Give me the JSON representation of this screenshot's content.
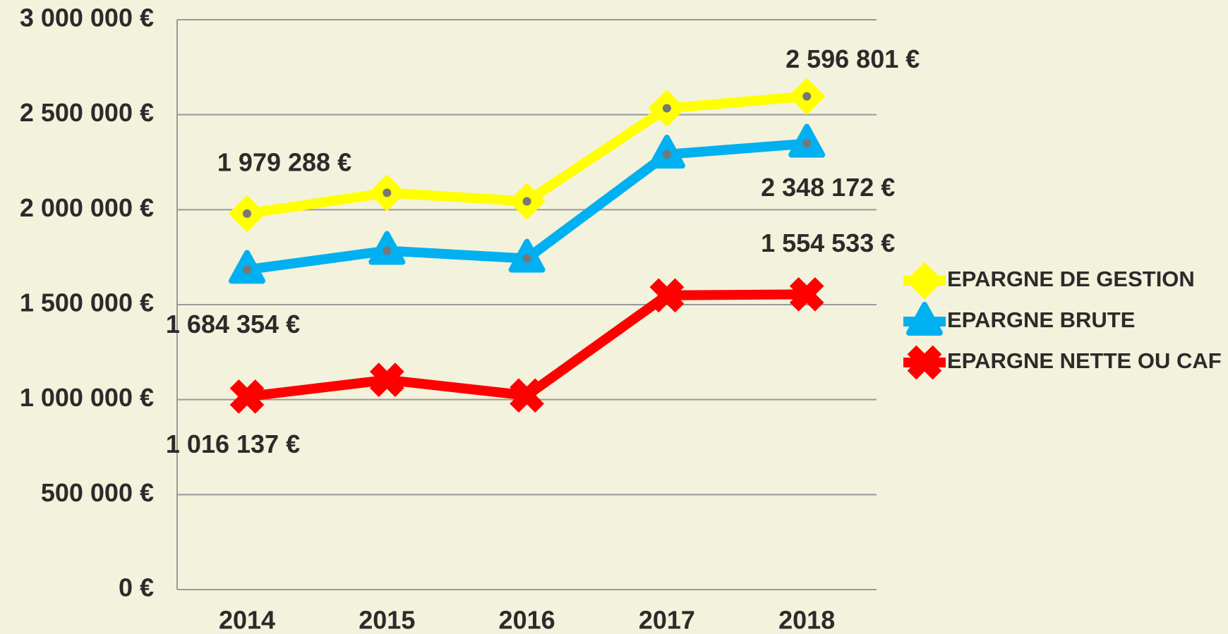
{
  "chart_data": {
    "type": "line",
    "categories": [
      "2014",
      "2015",
      "2016",
      "2017",
      "2018"
    ],
    "series": [
      {
        "name": "EPARGNE DE GESTION",
        "color": "#ffff00",
        "marker": "diamond",
        "values": [
          1979288,
          2089000,
          2044000,
          2534000,
          2596801
        ],
        "value_labels": [
          "1 979 288 €",
          null,
          null,
          null,
          "2 596 801 €"
        ]
      },
      {
        "name": "EPARGNE BRUTE",
        "color": "#00b0f0",
        "marker": "triangle",
        "values": [
          1684354,
          1784000,
          1743000,
          2291000,
          2348172
        ],
        "value_labels": [
          "1 684 354 €",
          null,
          null,
          null,
          "2 348 172 €"
        ]
      },
      {
        "name": "EPARGNE NETTE OU CAF",
        "color": "#ff0000",
        "marker": "x",
        "values": [
          1016137,
          1104000,
          1022000,
          1549000,
          1554533
        ],
        "value_labels": [
          "1 016 137 €",
          null,
          null,
          null,
          "1 554 533 €"
        ]
      }
    ],
    "ylim": [
      0,
      3000000
    ],
    "yticks": [
      {
        "value": 0,
        "label": "0 €"
      },
      {
        "value": 500000,
        "label": "500 000 €"
      },
      {
        "value": 1000000,
        "label": "1 000 000 €"
      },
      {
        "value": 1500000,
        "label": "1 500 000 €"
      },
      {
        "value": 2000000,
        "label": "2 000 000 €"
      },
      {
        "value": 2500000,
        "label": "2 500 000 €"
      },
      {
        "value": 3000000,
        "label": "3 000 000 €"
      }
    ],
    "grid": true,
    "legend": "right"
  }
}
